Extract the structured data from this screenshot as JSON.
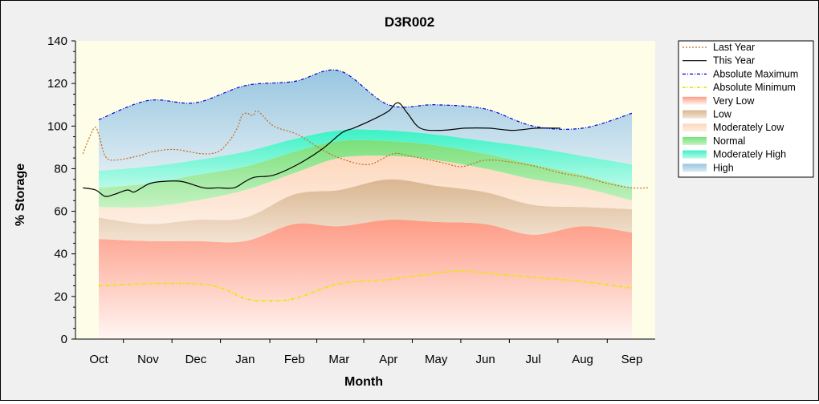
{
  "chart_data": {
    "type": "area",
    "title": "D3R002",
    "xlabel": "Month",
    "ylabel": "% Storage",
    "ylim": [
      0,
      140
    ],
    "yticks": [
      0,
      20,
      40,
      60,
      80,
      100,
      120,
      140
    ],
    "months": [
      "Oct",
      "Nov",
      "Dec",
      "Jan",
      "Feb",
      "Mar",
      "Apr",
      "May",
      "Jun",
      "Jul",
      "Aug",
      "Sep"
    ],
    "x_days": [
      0,
      31,
      61,
      92,
      123,
      151,
      182,
      212,
      243,
      273,
      304,
      335
    ],
    "legend_position": "right",
    "band_edges": {
      "x": [
        0,
        31,
        61,
        92,
        123,
        151,
        182,
        212,
        243,
        273,
        304,
        335
      ],
      "min": [
        0,
        0,
        0,
        0,
        0,
        0,
        0,
        0,
        0,
        0,
        0,
        0
      ],
      "very_low_top": [
        47,
        46,
        46,
        46,
        54,
        53,
        56,
        55,
        54,
        49,
        53,
        50
      ],
      "low_top": [
        57,
        54,
        56,
        57,
        68,
        70,
        75,
        72,
        69,
        63,
        62,
        61
      ],
      "moderately_low_top": [
        62,
        62,
        65,
        70,
        78,
        85,
        86,
        84,
        80,
        75,
        71,
        65
      ],
      "normal_top": [
        71,
        73,
        77,
        81,
        88,
        93,
        93,
        91,
        87,
        82,
        77,
        71
      ],
      "moderately_high_top": [
        79,
        81,
        84,
        88,
        94,
        98,
        98,
        96,
        93,
        90,
        86,
        82
      ],
      "high_top": [
        103,
        112,
        111,
        119,
        121,
        126,
        110,
        110,
        108,
        100,
        99,
        106
      ]
    },
    "series": [
      {
        "name": "Last Year",
        "color": "#c8691a",
        "style": "dotted",
        "x": [
          -10,
          -3,
          0,
          4,
          10,
          25,
          34,
          48,
          65,
          75,
          82,
          87,
          90,
          93,
          97,
          100,
          110,
          125,
          140,
          155,
          170,
          185,
          195,
          215,
          228,
          243,
          260,
          275,
          290,
          305,
          320,
          335,
          345
        ],
        "y": [
          87,
          99,
          96,
          86,
          84,
          86,
          88,
          89,
          87,
          88,
          93,
          99,
          105,
          106,
          105,
          107,
          100,
          96,
          89,
          84,
          82,
          87,
          86,
          83,
          81,
          84,
          83,
          81,
          78,
          76,
          73,
          71,
          71
        ]
      },
      {
        "name": "This Year",
        "color": "#000000",
        "style": "solid",
        "x": [
          -10,
          -2,
          4,
          10,
          18,
          22,
          27,
          32,
          40,
          52,
          66,
          75,
          85,
          92,
          98,
          110,
          125,
          140,
          153,
          160,
          172,
          182,
          188,
          194,
          202,
          215,
          230,
          245,
          260,
          275,
          290
        ],
        "y": [
          71,
          70,
          67,
          68,
          70,
          69,
          71,
          73,
          74,
          74,
          71,
          71,
          71,
          74,
          76,
          77,
          82,
          89,
          97,
          99,
          103,
          107,
          111,
          106,
          99,
          98,
          99,
          99,
          98,
          99,
          99
        ]
      },
      {
        "name": "Absolute Maximum",
        "color": "#0000d8",
        "style": "dashdot",
        "x": [
          0,
          31,
          61,
          92,
          123,
          151,
          182,
          212,
          243,
          273,
          304,
          335
        ],
        "y": [
          103,
          112,
          111,
          119,
          121,
          126,
          110,
          110,
          108,
          100,
          99,
          106
        ]
      },
      {
        "name": "Absolute Minimum",
        "color": "#e8e800",
        "style": "dashdot",
        "x": [
          0,
          31,
          61,
          77,
          92,
          105,
          123,
          151,
          182,
          212,
          227,
          243,
          273,
          304,
          335
        ],
        "y": [
          25,
          26,
          26,
          24,
          19,
          18,
          19,
          26,
          28,
          31,
          32,
          31,
          29,
          27,
          24
        ]
      }
    ],
    "bands": [
      {
        "name": "Very Low",
        "lower": "min",
        "upper": "very_low_top",
        "color_top": "#fe9b85",
        "color_bottom": "#fff6f3"
      },
      {
        "name": "Low",
        "lower": "very_low_top",
        "upper": "low_top",
        "color_top": "#d9b690",
        "color_bottom": "#f3e3d3"
      },
      {
        "name": "Moderately Low",
        "lower": "low_top",
        "upper": "moderately_low_top",
        "color_top": "#fdd8bd",
        "color_bottom": "#fdeee2"
      },
      {
        "name": "Normal",
        "lower": "moderately_low_top",
        "upper": "normal_top",
        "color_top": "#7ae07a",
        "color_bottom": "#c4f2c2"
      },
      {
        "name": "Moderately High",
        "lower": "normal_top",
        "upper": "moderately_high_top",
        "color_top": "#3bf2c6",
        "color_bottom": "#b9fae8"
      },
      {
        "name": "High",
        "lower": "moderately_high_top",
        "upper": "high_top",
        "color_top": "#98c6e0",
        "color_bottom": "#dcebf2"
      }
    ],
    "legend": [
      {
        "label": "Last Year",
        "kind": "line",
        "ref": 0
      },
      {
        "label": "This Year",
        "kind": "line",
        "ref": 1
      },
      {
        "label": "Absolute Maximum",
        "kind": "line",
        "ref": 2
      },
      {
        "label": "Absolute Minimum",
        "kind": "line",
        "ref": 3
      },
      {
        "label": "Very Low",
        "kind": "band",
        "ref": 0
      },
      {
        "label": "Low",
        "kind": "band",
        "ref": 1
      },
      {
        "label": "Moderately Low",
        "kind": "band",
        "ref": 2
      },
      {
        "label": "Normal",
        "kind": "band",
        "ref": 3
      },
      {
        "label": "Moderately High",
        "kind": "band",
        "ref": 4
      },
      {
        "label": "High",
        "kind": "band",
        "ref": 5
      }
    ],
    "plot_background": "#fdfde8"
  }
}
